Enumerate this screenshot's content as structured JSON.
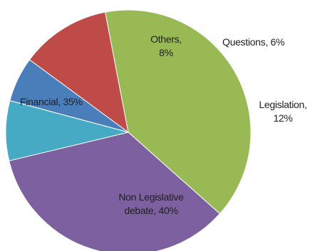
{
  "chart_data": {
    "type": "pie",
    "title": "",
    "start_angle_deg": 285,
    "slices": [
      {
        "label": "Questions",
        "value": 6,
        "color": "#4a7ebb",
        "text_lines": [
          "Questions, 6%"
        ]
      },
      {
        "label": "Legislation",
        "value": 12,
        "color": "#be4b48",
        "text_lines": [
          "Legislation,",
          "12%"
        ]
      },
      {
        "label": "Non Legislative debate",
        "value": 40,
        "color": "#98b954",
        "text_lines": [
          "Non Legislative",
          "debate, 40%"
        ]
      },
      {
        "label": "Financial",
        "value": 35,
        "color": "#7d60a0",
        "text_lines": [
          "Financial, 35%"
        ]
      },
      {
        "label": "Others",
        "value": 8,
        "color": "#46aac5",
        "text_lines": [
          "Others,",
          "8%"
        ]
      }
    ]
  }
}
